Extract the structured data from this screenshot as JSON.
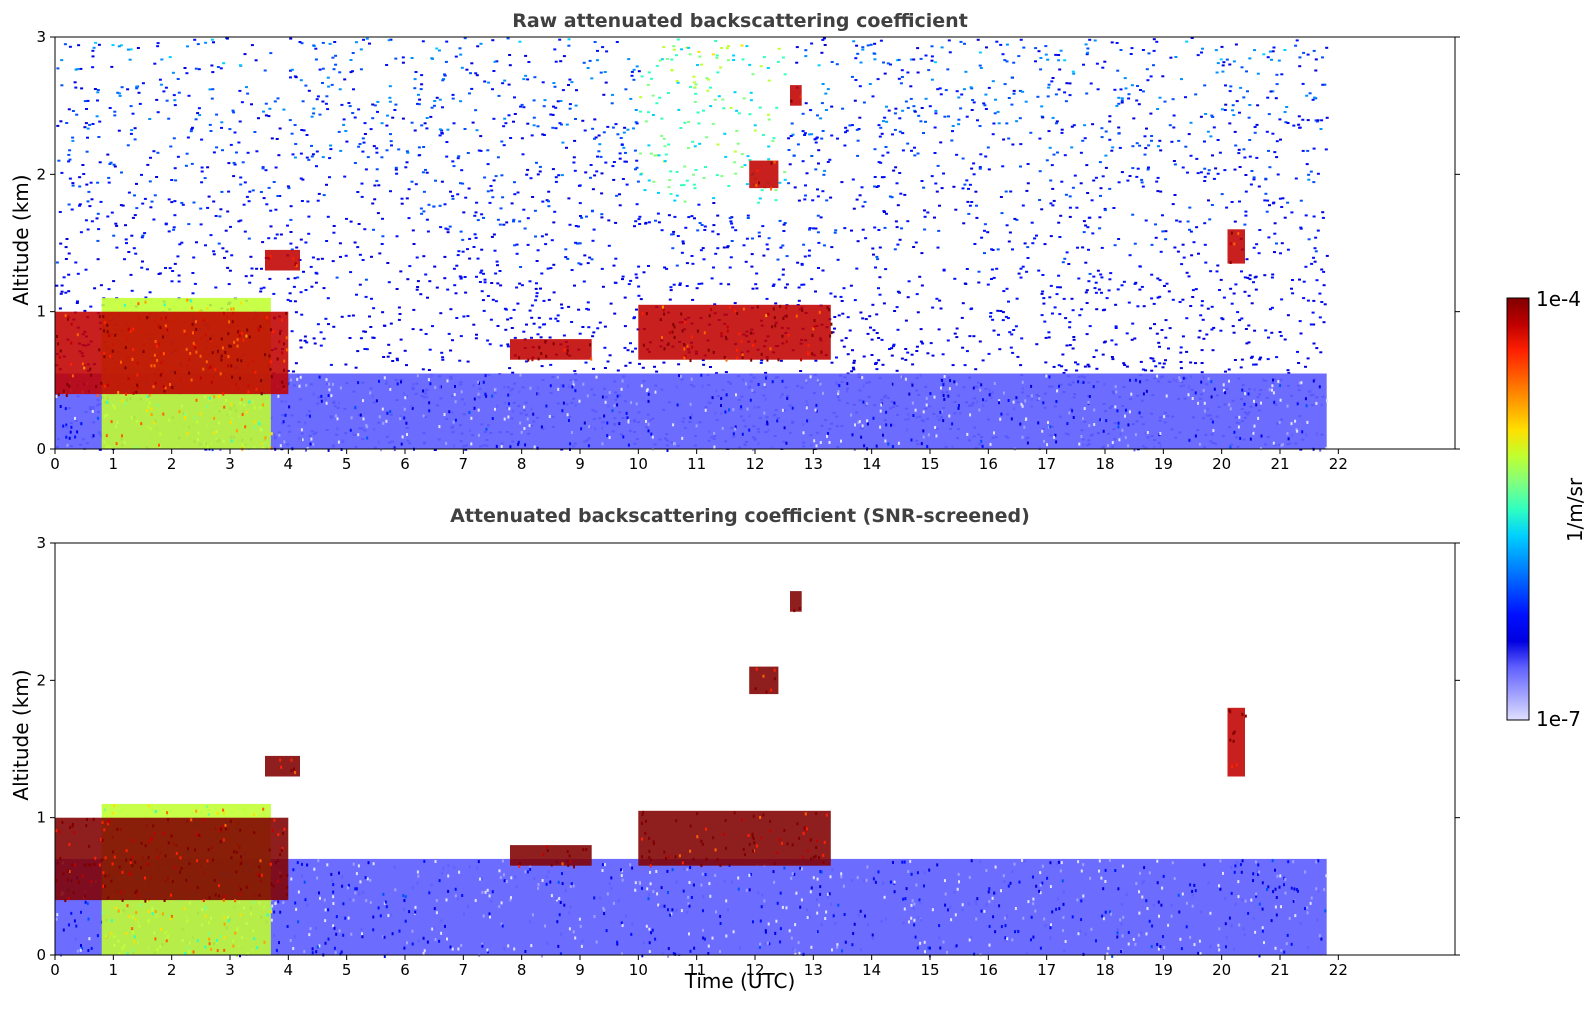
{
  "chart_data": [
    {
      "type": "heatmap",
      "title": "Raw attenuated backscattering coefficient",
      "xlabel": "",
      "ylabel": "Altitude (km)",
      "xlim": [
        0,
        24
      ],
      "ylim": [
        0,
        3
      ],
      "xticks": [
        0,
        1,
        2,
        3,
        4,
        5,
        6,
        7,
        8,
        9,
        10,
        11,
        12,
        13,
        14,
        15,
        16,
        17,
        18,
        19,
        20,
        21,
        22
      ],
      "xtick_labels": [
        "0",
        "1",
        "2",
        "3",
        "4",
        "5",
        "6",
        "7",
        "8",
        "9",
        "10",
        "11",
        "12",
        "13",
        "14",
        "15",
        "16",
        "17",
        "18",
        "19",
        "20",
        "21",
        "22"
      ],
      "yticks": [
        0,
        1,
        2,
        3
      ],
      "ytick_labels": [
        "0",
        "1",
        "2",
        "3"
      ],
      "data_extent_x": [
        0,
        21.8
      ],
      "colormap": "jet",
      "colorscale": "log",
      "features": [
        {
          "name": "noise-background",
          "x": [
            0,
            21.8
          ],
          "y": [
            0,
            3
          ],
          "level": 0.3
        },
        {
          "name": "near-surface-layer",
          "x": [
            0,
            21.8
          ],
          "y": [
            0,
            0.55
          ],
          "level": 0.12
        },
        {
          "name": "aerosol-plume",
          "x": [
            0.8,
            3.7
          ],
          "y": [
            0,
            1.1
          ],
          "level": 0.65
        },
        {
          "name": "cloud-layer-early",
          "x": [
            0,
            4.0
          ],
          "y": [
            0.4,
            1.0
          ],
          "level": 0.95
        },
        {
          "name": "cloud-4h",
          "x": [
            3.6,
            4.2
          ],
          "y": [
            1.3,
            1.45
          ],
          "level": 0.95
        },
        {
          "name": "cloud-8h",
          "x": [
            7.8,
            9.2
          ],
          "y": [
            0.65,
            0.8
          ],
          "level": 0.95
        },
        {
          "name": "cloud-10-13h",
          "x": [
            10.0,
            13.3
          ],
          "y": [
            0.65,
            1.05
          ],
          "level": 0.95
        },
        {
          "name": "cloud-12h-2km",
          "x": [
            11.9,
            12.4
          ],
          "y": [
            1.9,
            2.1
          ],
          "level": 0.95
        },
        {
          "name": "cloud-12.6h-2.6km",
          "x": [
            12.6,
            12.8
          ],
          "y": [
            2.5,
            2.65
          ],
          "level": 0.95
        },
        {
          "name": "cloud-20.2h",
          "x": [
            20.1,
            20.4
          ],
          "y": [
            1.35,
            1.6
          ],
          "level": 0.95
        }
      ]
    },
    {
      "type": "heatmap",
      "title": "Attenuated backscattering coefficient (SNR-screened)",
      "xlabel": "Time (UTC)",
      "ylabel": "Altitude (km)",
      "xlim": [
        0,
        24
      ],
      "ylim": [
        0,
        3
      ],
      "xticks": [
        0,
        1,
        2,
        3,
        4,
        5,
        6,
        7,
        8,
        9,
        10,
        11,
        12,
        13,
        14,
        15,
        16,
        17,
        18,
        19,
        20,
        21,
        22
      ],
      "xtick_labels": [
        "0",
        "1",
        "2",
        "3",
        "4",
        "5",
        "6",
        "7",
        "8",
        "9",
        "10",
        "11",
        "12",
        "13",
        "14",
        "15",
        "16",
        "17",
        "18",
        "19",
        "20",
        "21",
        "22"
      ],
      "yticks": [
        0,
        1,
        2,
        3
      ],
      "ytick_labels": [
        "0",
        "1",
        "2",
        "3"
      ],
      "data_extent_x": [
        0,
        21.8
      ],
      "colormap": "jet",
      "colorscale": "log",
      "features": [
        {
          "name": "near-surface-layer",
          "x": [
            0,
            21.8
          ],
          "y": [
            0,
            0.7
          ],
          "level": 0.12
        },
        {
          "name": "aerosol-plume",
          "x": [
            0.8,
            3.7
          ],
          "y": [
            0,
            1.1
          ],
          "level": 0.65
        },
        {
          "name": "cloud-layer-early",
          "x": [
            0,
            4.0
          ],
          "y": [
            0.4,
            1.0
          ],
          "level": 1.0
        },
        {
          "name": "cloud-4h",
          "x": [
            3.6,
            4.2
          ],
          "y": [
            1.3,
            1.45
          ],
          "level": 1.0
        },
        {
          "name": "cloud-8h",
          "x": [
            7.8,
            9.2
          ],
          "y": [
            0.65,
            0.8
          ],
          "level": 1.0
        },
        {
          "name": "cloud-10-13h",
          "x": [
            10.0,
            13.3
          ],
          "y": [
            0.65,
            1.05
          ],
          "level": 1.0
        },
        {
          "name": "cloud-12h-2km",
          "x": [
            11.9,
            12.4
          ],
          "y": [
            1.9,
            2.1
          ],
          "level": 1.0
        },
        {
          "name": "cloud-12.6h-2.6km",
          "x": [
            12.6,
            12.8
          ],
          "y": [
            2.5,
            2.65
          ],
          "level": 1.0
        },
        {
          "name": "cloud-20.2h",
          "x": [
            20.1,
            20.4
          ],
          "y": [
            1.3,
            1.8
          ],
          "level": 0.95
        }
      ]
    }
  ],
  "colorbar": {
    "label": "1/m/sr",
    "max_label": "1e-4",
    "min_label": "1e-7",
    "colors": [
      "#800000",
      "#c00000",
      "#ff2000",
      "#ff6000",
      "#ffa000",
      "#ffe000",
      "#c0ff30",
      "#80ff80",
      "#30ffc0",
      "#00d0ff",
      "#0090ff",
      "#0050ff",
      "#0010ff",
      "#0000e0",
      "#6060ff",
      "#a0a0ff",
      "#e0e0ff"
    ]
  }
}
